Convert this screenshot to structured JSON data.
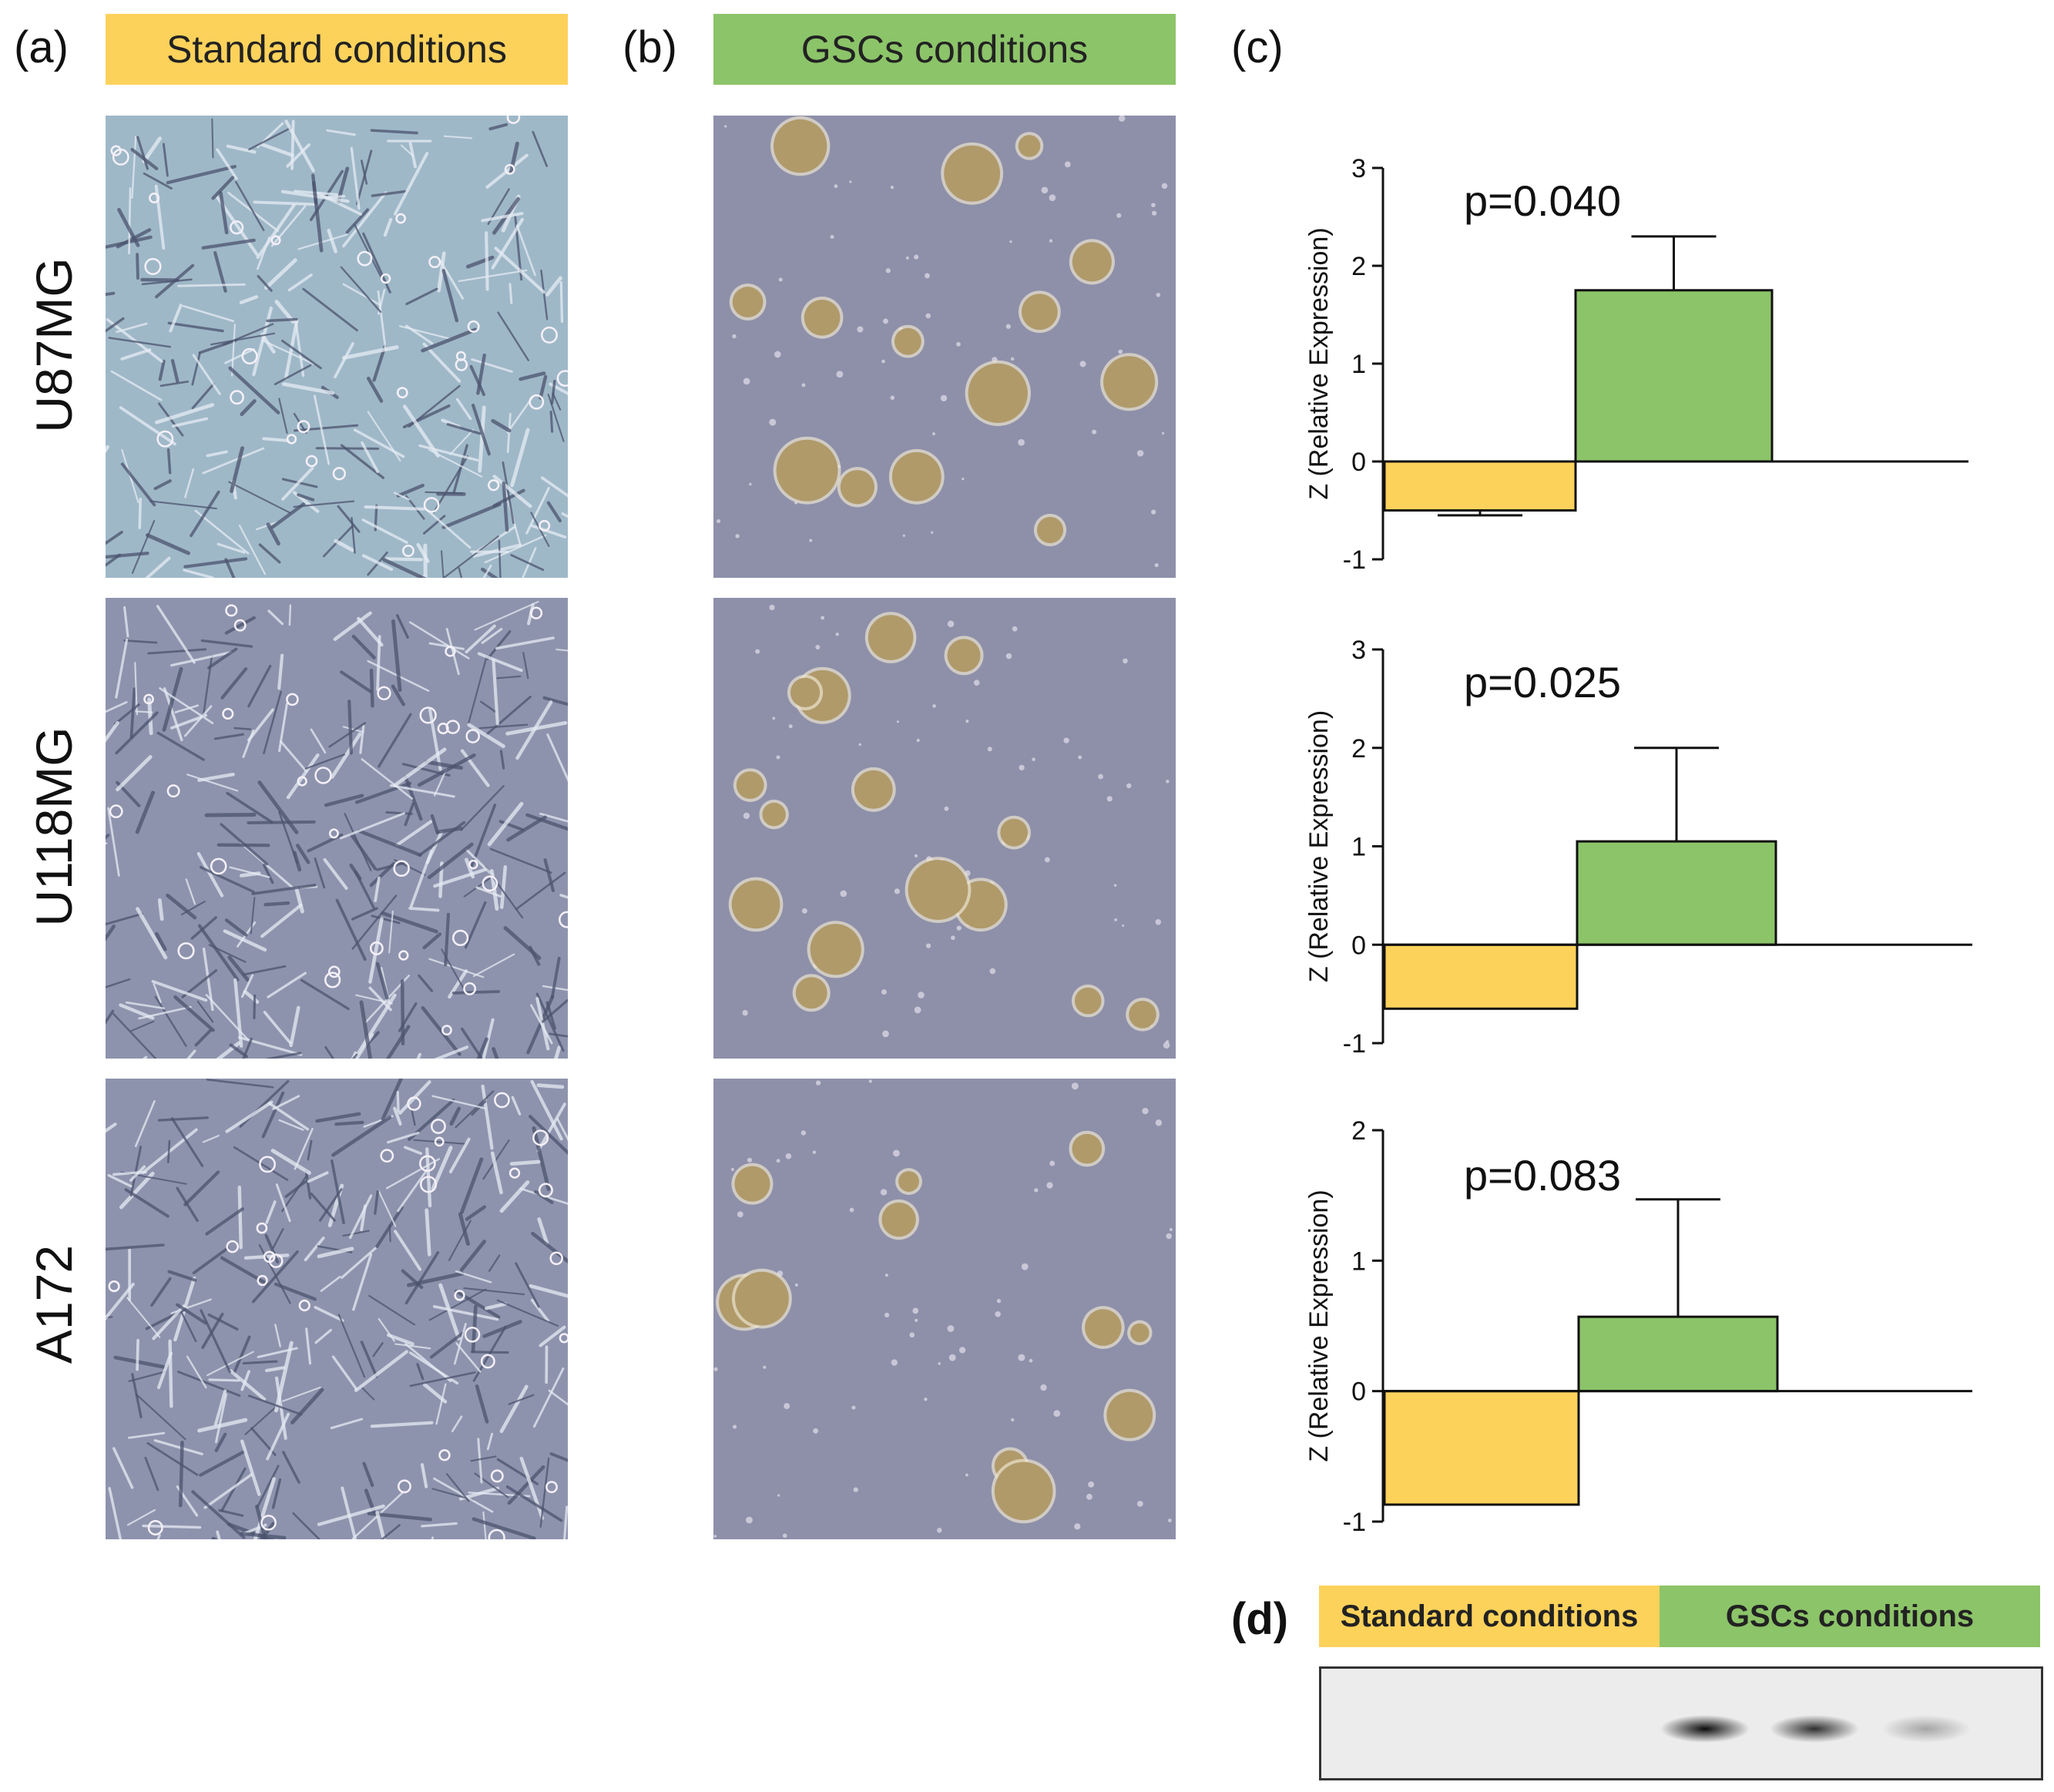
{
  "panels": {
    "a": {
      "letter": "(a)",
      "banner": "Standard conditions",
      "banner_color": "#FDD25B"
    },
    "b": {
      "letter": "(b)",
      "banner": "GSCs conditions",
      "banner_color": "#8CC469"
    },
    "c": {
      "letter": "(c)"
    },
    "d": {
      "letter": "(d)",
      "standard_label": "Standard conditions",
      "gsc_label": "GSCs conditions"
    }
  },
  "rows": [
    "U87MG",
    "U118MG",
    "A172"
  ],
  "colors": {
    "standard": "#FDD25B",
    "gsc": "#8CC469",
    "std_micro_u87": "#9fb8c8",
    "std_micro": "#8e93ad",
    "gsc_micro": "#8e90aa",
    "sphere": "#b09a6a"
  },
  "chart_data": [
    {
      "type": "bar",
      "cell_line": "U87MG",
      "categories": [
        "Standard conditions",
        "GSCs conditions"
      ],
      "values": [
        -0.5,
        1.75
      ],
      "error": [
        0.05,
        0.55
      ],
      "annotation": "p=0.040",
      "ylabel": "Z (Relative Expression)",
      "ylim": [
        -1,
        3
      ],
      "yticks": [
        "-1",
        "0",
        "1",
        "2",
        "3"
      ]
    },
    {
      "type": "bar",
      "cell_line": "U118MG",
      "categories": [
        "Standard conditions",
        "GSCs conditions"
      ],
      "values": [
        -0.65,
        1.05
      ],
      "error": [
        0,
        0.95
      ],
      "annotation": "p=0.025",
      "ylabel": "Z (Relative Expression)",
      "ylim": [
        -1,
        3
      ],
      "yticks": [
        "-1",
        "0",
        "1",
        "2",
        "3"
      ]
    },
    {
      "type": "bar",
      "cell_line": "A172",
      "categories": [
        "Standard conditions",
        "GSCs conditions"
      ],
      "values": [
        -0.87,
        0.57
      ],
      "error": [
        0,
        0.9
      ],
      "annotation": "p=0.083",
      "ylabel": "Z (Relative Expression)",
      "ylim": [
        -1,
        2
      ],
      "yticks": [
        "-1",
        "0",
        "1",
        "2"
      ]
    }
  ],
  "western_blot": {
    "bands": [
      {
        "lane": "gsc-1",
        "intensity": 0.95
      },
      {
        "lane": "gsc-2",
        "intensity": 0.8
      },
      {
        "lane": "gsc-3",
        "intensity": 0.3
      }
    ]
  }
}
